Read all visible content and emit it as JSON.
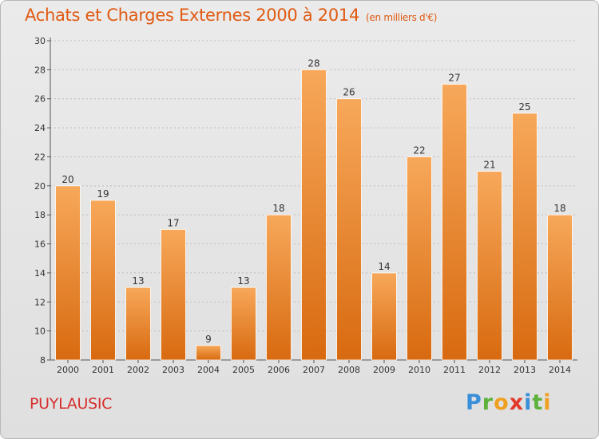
{
  "header": {
    "title": "Achats et Charges Externes 2000 à 2014",
    "subtitle": "(en milliers d'€)"
  },
  "footer": {
    "city": "PUYLAUSIC",
    "logo_letters": [
      {
        "char": "P",
        "color": "#3a8fd9"
      },
      {
        "char": "r",
        "color": "#5cb23a"
      },
      {
        "char": "o",
        "color": "#f0a020"
      },
      {
        "char": "x",
        "color": "#e23a2a"
      },
      {
        "char": "i",
        "color": "#3a8fd9"
      },
      {
        "char": "t",
        "color": "#5cb23a"
      },
      {
        "char": "i",
        "color": "#f0a020"
      }
    ]
  },
  "colors": {
    "bar_light": "#f7a85a",
    "bar_dark": "#d86a10",
    "title": "#e05a12",
    "city": "#d62e2e"
  },
  "chart_data": {
    "type": "bar",
    "title": "Achats et Charges Externes 2000 à 2014",
    "subtitle": "(en milliers d'€)",
    "xlabel": "",
    "ylabel": "",
    "categories": [
      "2000",
      "2001",
      "2002",
      "2003",
      "2004",
      "2005",
      "2006",
      "2007",
      "2008",
      "2009",
      "2010",
      "2011",
      "2012",
      "2013",
      "2014"
    ],
    "values": [
      20,
      19,
      13,
      17,
      9,
      13,
      18,
      28,
      26,
      14,
      22,
      27,
      21,
      25,
      18
    ],
    "ylim": [
      8,
      30
    ],
    "yticks": [
      8,
      10,
      12,
      14,
      16,
      18,
      20,
      22,
      24,
      26,
      28,
      30
    ],
    "grid": true,
    "legend": "none"
  }
}
